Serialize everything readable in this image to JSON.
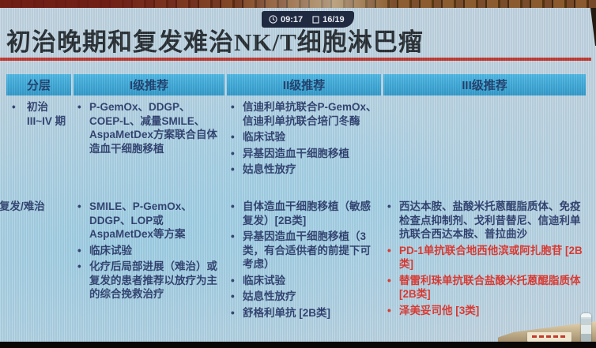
{
  "status_bar": {
    "time": "09:17",
    "counter": "16/19"
  },
  "slide": {
    "title": "初治晚期和复发难治NK/T细胞淋巴瘤",
    "accent_red": "#c22417",
    "header_cyan": "#2fa6d6",
    "body_navy": "#1e2d5e",
    "highlight_red": "#df2418"
  },
  "table": {
    "headers": [
      "分层",
      "I级推荐",
      "II级推荐",
      "III级推荐"
    ],
    "rows": [
      {
        "category": "初治\nIII~IV 期",
        "level1": [
          {
            "t": "P-GemOx、DDGP、COEP-L、减量SMILE、AspaMetDex方案联合自体造血干细胞移植"
          }
        ],
        "level2": [
          {
            "t": "信迪利单抗联合P-GemOx、信迪利单抗联合培门冬酶"
          },
          {
            "t": "临床试验"
          },
          {
            "t": "异基因造血干细胞移植"
          },
          {
            "t": "姑息性放疗"
          }
        ],
        "level3": []
      },
      {
        "category": "复发/难治",
        "level1": [
          {
            "t": "SMILE、P-GemOx、DDGP、LOP或AspaMetDex等方案"
          },
          {
            "t": "临床试验"
          },
          {
            "t": "化疗后局部进展（难治）或复发的患者推荐以放疗为主的综合挽救治疗"
          }
        ],
        "level2": [
          {
            "t": "自体造血干细胞移植（敏感复发）[2B类]"
          },
          {
            "t": "异基因造血干细胞移植（3类，有合适供者的前提下可考虑）"
          },
          {
            "t": "临床试验"
          },
          {
            "t": "姑息性放疗"
          },
          {
            "t": "舒格利单抗 [2B类]"
          }
        ],
        "level3": [
          {
            "t": "西达本胺、盐酸米托蒽醌脂质体、免疫检查点抑制剂、戈利昔替尼、信迪利单抗联合西达本胺、普拉曲沙"
          },
          {
            "t": "PD-1单抗联合地西他滨或阿扎胞苷 [2B类]",
            "red": true
          },
          {
            "t": "替雷利珠单抗联合盐酸米托蒽醌脂质体 [2B类]",
            "red": true
          },
          {
            "t": "泽美妥司他 [3类]",
            "red": true
          }
        ]
      }
    ]
  }
}
